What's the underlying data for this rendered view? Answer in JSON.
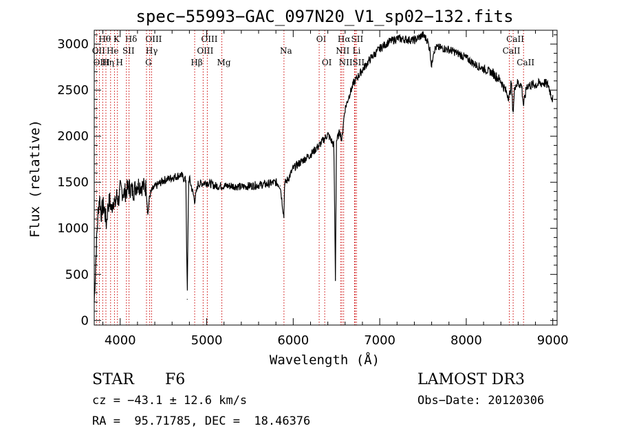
{
  "chart_data": {
    "type": "line",
    "title": "spec−55993−GAC_097N20_V1_sp02−132.fits",
    "xlabel": "Wavelength (Å)",
    "ylabel": "Flux (relative)",
    "xlim": [
      3700,
      9050
    ],
    "ylim": [
      -50,
      3150
    ],
    "xticks": [
      4000,
      5000,
      6000,
      7000,
      8000,
      9000
    ],
    "yticks": [
      0,
      500,
      1000,
      1500,
      2000,
      2500,
      3000
    ],
    "series": [
      {
        "name": "flux",
        "x": [
          3700,
          3720,
          3740,
          3760,
          3780,
          3800,
          3820,
          3840,
          3860,
          3880,
          3900,
          3920,
          3940,
          3960,
          3980,
          4000,
          4050,
          4100,
          4150,
          4200,
          4250,
          4300,
          4320,
          4340,
          4360,
          4400,
          4500,
          4600,
          4700,
          4760,
          4775,
          4790,
          4800,
          4862,
          4900,
          5000,
          5100,
          5200,
          5300,
          5400,
          5500,
          5600,
          5700,
          5800,
          5850,
          5893,
          5900,
          5950,
          6000,
          6100,
          6200,
          6300,
          6400,
          6470,
          6488,
          6500,
          6540,
          6563,
          6580,
          6600,
          6650,
          6700,
          6800,
          6900,
          7000,
          7100,
          7200,
          7300,
          7400,
          7500,
          7550,
          7580,
          7600,
          7620,
          7650,
          7700,
          7800,
          7900,
          8000,
          8100,
          8200,
          8300,
          8400,
          8450,
          8498,
          8520,
          8542,
          8560,
          8600,
          8640,
          8662,
          8700,
          8800,
          8900,
          8950,
          8980,
          9000
        ],
        "values": [
          200,
          700,
          1100,
          1350,
          1150,
          1250,
          1200,
          1050,
          1250,
          1300,
          1200,
          1320,
          1250,
          1350,
          1300,
          1420,
          1380,
          1450,
          1400,
          1480,
          1460,
          1440,
          1150,
          1350,
          1400,
          1450,
          1520,
          1550,
          1580,
          1520,
          230,
          1500,
          1540,
          1300,
          1480,
          1500,
          1460,
          1460,
          1460,
          1450,
          1460,
          1470,
          1480,
          1500,
          1460,
          1120,
          1480,
          1550,
          1650,
          1730,
          1800,
          1900,
          2020,
          1900,
          450,
          1950,
          2050,
          1950,
          2150,
          2300,
          2450,
          2580,
          2720,
          2850,
          2950,
          3020,
          3060,
          3050,
          3040,
          3100,
          3040,
          2940,
          2750,
          2920,
          2960,
          2960,
          2940,
          2900,
          2850,
          2780,
          2730,
          2690,
          2600,
          2500,
          2420,
          2580,
          2250,
          2550,
          2580,
          2550,
          2330,
          2550,
          2560,
          2580,
          2550,
          2450,
          2400
        ]
      }
    ],
    "lines": [
      {
        "label": "Hθ",
        "wl": 3798,
        "row": 1
      },
      {
        "label": "OII",
        "wl": 3727,
        "row": 2
      },
      {
        "label": "OIII",
        "wl": 3760,
        "row": 3
      },
      {
        "label": "K",
        "wl": 3934,
        "row": 1
      },
      {
        "label": "He",
        "wl": 3889,
        "row": 2
      },
      {
        "label": "Hη",
        "wl": 3835,
        "row": 3
      },
      {
        "label": "Hδ",
        "wl": 4102,
        "row": 1
      },
      {
        "label": "SII",
        "wl": 4072,
        "row": 2
      },
      {
        "label": "H",
        "wl": 3968,
        "row": 3
      },
      {
        "label": "OIII",
        "wl": 4363,
        "row": 1
      },
      {
        "label": "Hγ",
        "wl": 4341,
        "row": 2
      },
      {
        "label": "G",
        "wl": 4304,
        "row": 3
      },
      {
        "label": "OIII",
        "wl": 5007,
        "row": 1
      },
      {
        "label": "OIII",
        "wl": 4959,
        "row": 2
      },
      {
        "label": "Hβ",
        "wl": 4861,
        "row": 3
      },
      {
        "label": "Mg",
        "wl": 5175,
        "row": 3
      },
      {
        "label": "Na",
        "wl": 5893,
        "row": 2
      },
      {
        "label": "OI",
        "wl": 6300,
        "row": 1
      },
      {
        "label": "OI",
        "wl": 6364,
        "row": 3
      },
      {
        "label": "Hα",
        "wl": 6563,
        "row": 1
      },
      {
        "label": "NII",
        "wl": 6548,
        "row": 2
      },
      {
        "label": "NII",
        "wl": 6583,
        "row": 3
      },
      {
        "label": "SII",
        "wl": 6716,
        "row": 1
      },
      {
        "label": "Li",
        "wl": 6708,
        "row": 2
      },
      {
        "label": "SII",
        "wl": 6731,
        "row": 3
      },
      {
        "label": "CaII",
        "wl": 8542,
        "row": 1
      },
      {
        "label": "CaII",
        "wl": 8498,
        "row": 2
      },
      {
        "label": "CaII",
        "wl": 8662,
        "row": 3
      }
    ]
  },
  "info": {
    "object_class": "STAR",
    "subclass": "F6",
    "survey": "LAMOST DR3",
    "cz": "cz = −43.1 ± 12.6 km/s",
    "obs_date": "Obs−Date: 20120306",
    "coords": "RA =  95.71785, DEC =  18.46376"
  },
  "colors": {
    "spectrum": "#000000",
    "line_markers": "#cc0000"
  }
}
